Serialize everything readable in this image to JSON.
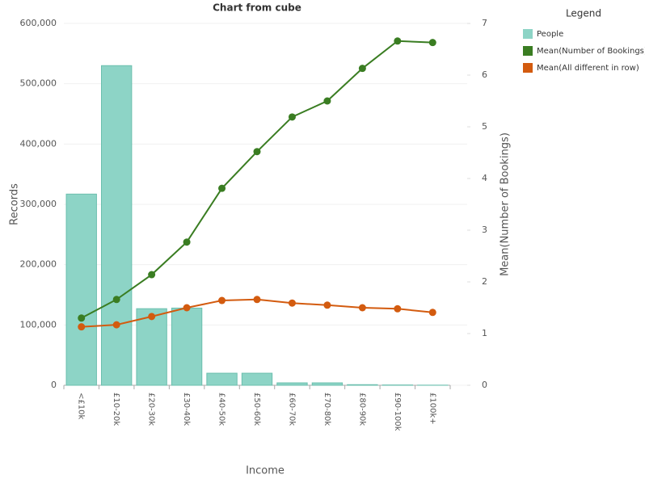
{
  "chart_data": {
    "type": "combo",
    "title": "Chart from cube",
    "x_label": "Income",
    "y_label": "Records",
    "y2_label": "Mean(Number of Bookings)",
    "legend_title": "Legend",
    "legend": "right",
    "grid": true,
    "categories": [
      "<£10k",
      "£10-20k",
      "£20-30k",
      "£30-40k",
      "£40-50k",
      "£50-60k",
      "£60-70k",
      "£70-80k",
      "£80-90k",
      "£90-100k",
      "£100k+"
    ],
    "ylim": [
      0,
      600000
    ],
    "yticks": [
      0,
      {
        "value": 100000,
        "label": "100,000"
      },
      {
        "value": 200000,
        "label": "200,000"
      },
      {
        "value": 300000,
        "label": "300,000"
      },
      {
        "value": 400000,
        "label": "400,000"
      },
      {
        "value": 500000,
        "label": "500,000"
      },
      {
        "value": 600000,
        "label": "600,000"
      }
    ],
    "y2lim": [
      0,
      7
    ],
    "y2ticks": [
      0,
      1,
      2,
      3,
      4,
      5,
      6,
      7
    ],
    "series": [
      {
        "name": "People",
        "type": "bar",
        "color": "#8dd4c6",
        "values": [
          317000,
          530000,
          127000,
          128000,
          20000,
          20000,
          4000,
          4000,
          1000,
          500,
          200
        ]
      },
      {
        "name": "Mean(Number of Bookings)",
        "type": "line",
        "axis": "y2",
        "color": "#3a7d22",
        "values": [
          1.3,
          1.66,
          2.14,
          2.77,
          3.81,
          4.52,
          5.19,
          5.5,
          6.13,
          6.66,
          6.63
        ]
      },
      {
        "name": "Mean(All different in row)",
        "type": "line",
        "axis": "y2",
        "color": "#d35b0f",
        "values": [
          1.13,
          1.17,
          1.33,
          1.5,
          1.64,
          1.66,
          1.59,
          1.55,
          1.5,
          1.48,
          1.41
        ]
      }
    ]
  }
}
